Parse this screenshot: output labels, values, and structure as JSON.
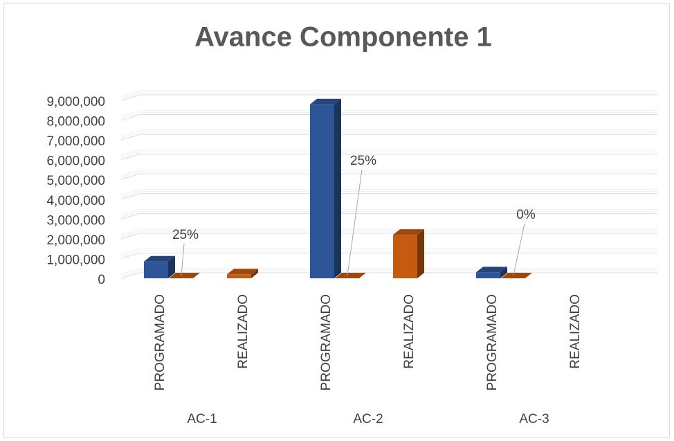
{
  "chart_data": {
    "type": "bar3d",
    "title": "Avance Componente 1",
    "categories": [
      "PROGRAMADO",
      "REALIZADO",
      "PROGRAMADO",
      "REALIZADO",
      "PROGRAMADO",
      "REALIZADO"
    ],
    "groups": [
      "AC-1",
      "AC-2",
      "AC-3"
    ],
    "series": [
      {
        "color": "#2e5597",
        "values": [
          850000,
          null,
          8800000,
          null,
          300000,
          null
        ]
      },
      {
        "color": "#c55a11",
        "values": [
          0.25,
          200000,
          0.25,
          2200000,
          0,
          null
        ],
        "value_labels": [
          "25%",
          null,
          "25%",
          null,
          "0%",
          null
        ]
      }
    ],
    "ylim": [
      0,
      9000000
    ],
    "yticks": [
      0,
      {
        "value": 1000000,
        "label": "1,000,000"
      },
      {
        "value": 2000000,
        "label": "2,000,000"
      },
      {
        "value": 3000000,
        "label": "3,000,000"
      },
      {
        "value": 4000000,
        "label": "4,000,000"
      },
      {
        "value": 5000000,
        "label": "5,000,000"
      },
      {
        "value": 6000000,
        "label": "6,000,000"
      },
      {
        "value": 7000000,
        "label": "7,000,000"
      },
      {
        "value": 8000000,
        "label": "8,000,000"
      },
      {
        "value": 9000000,
        "label": "9,000,000"
      }
    ],
    "grid": true
  }
}
